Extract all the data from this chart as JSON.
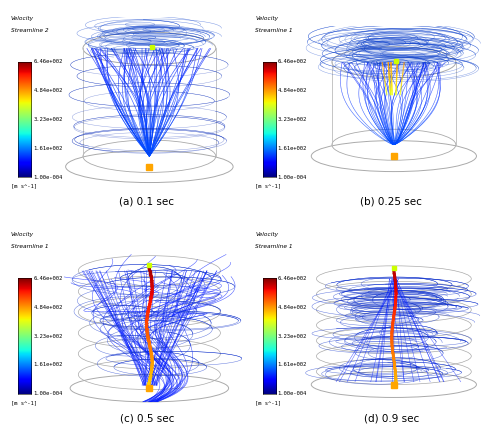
{
  "subplots": [
    {
      "label": "(a) 0.1 sec",
      "colorbar_title": "Velocity\nStreamline 2"
    },
    {
      "label": "(b) 0.25 sec",
      "colorbar_title": "Velocity\nStreamline 1"
    },
    {
      "label": "(c) 0.5 sec",
      "colorbar_title": "Velocity\nStreamline 1"
    },
    {
      "label": "(d) 0.9 sec",
      "colorbar_title": "Velocity\nStreamline 1"
    }
  ],
  "colorbar_ticks": [
    "6.46e+002",
    "4.84e+002",
    "3.23e+002",
    "1.61e+002",
    "1.00e-004"
  ],
  "colorbar_unit": "[m s¹⁻¹]",
  "colorbar_unit_raw": "[m s^-1]",
  "cmap": "jet",
  "bg_color": "#f0f0f0"
}
